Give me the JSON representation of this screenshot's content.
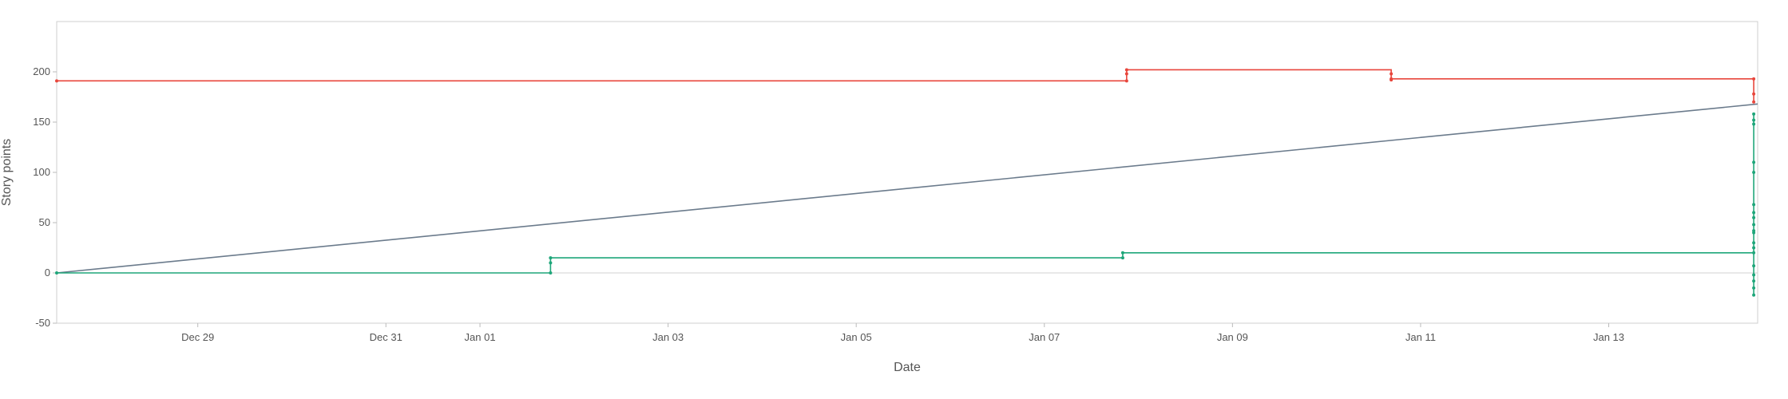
{
  "chart_data": {
    "type": "line",
    "title": "",
    "xlabel": "Date",
    "ylabel": "Story points",
    "x_axis_type": "date",
    "xlim": [
      "2023-12-27T12:00",
      "2024-01-14T14:00"
    ],
    "ylim": [
      -50,
      250
    ],
    "x_ticks": [
      {
        "date": "2023-12-29",
        "label": "Dec 29"
      },
      {
        "date": "2023-12-31",
        "label": "Dec 31"
      },
      {
        "date": "2024-01-01",
        "label": "Jan 01"
      },
      {
        "date": "2024-01-03",
        "label": "Jan 03"
      },
      {
        "date": "2024-01-05",
        "label": "Jan 05"
      },
      {
        "date": "2024-01-07",
        "label": "Jan 07"
      },
      {
        "date": "2024-01-09",
        "label": "Jan 09"
      },
      {
        "date": "2024-01-11",
        "label": "Jan 11"
      },
      {
        "date": "2024-01-13",
        "label": "Jan 13"
      }
    ],
    "y_ticks": [
      -50,
      0,
      50,
      100,
      150,
      200
    ],
    "grid": {
      "horizontal_zero_line": true,
      "other_gridlines": false
    },
    "legend": "none",
    "series": [
      {
        "color": "#e8463c",
        "step": true,
        "markers": true,
        "points": [
          [
            "2023-12-27T12:00",
            191
          ],
          [
            "2024-01-07T21:00",
            191
          ],
          [
            "2024-01-07T21:00",
            198
          ],
          [
            "2024-01-07T21:00",
            202
          ],
          [
            "2024-01-10T16:30",
            198
          ],
          [
            "2024-01-10T16:30",
            192
          ],
          [
            "2024-01-10T16:30",
            193
          ],
          [
            "2024-01-14T13:00",
            193
          ],
          [
            "2024-01-14T13:00",
            178
          ],
          [
            "2024-01-14T13:00",
            170
          ]
        ]
      },
      {
        "color": "#6b7b8c",
        "step": false,
        "markers": false,
        "points": [
          [
            "2023-12-27T12:00",
            0
          ],
          [
            "2024-01-14T14:00",
            168
          ]
        ]
      },
      {
        "color": "#1fa67a",
        "step": true,
        "markers": true,
        "points": [
          [
            "2023-12-27T12:00",
            0
          ],
          [
            "2024-01-01T18:00",
            0
          ],
          [
            "2024-01-01T18:00",
            10
          ],
          [
            "2024-01-01T18:00",
            15
          ],
          [
            "2024-01-07T20:00",
            15
          ],
          [
            "2024-01-07T20:00",
            20
          ],
          [
            "2024-01-14T13:00",
            20
          ],
          [
            "2024-01-14T13:00",
            -22
          ],
          [
            "2024-01-14T13:00",
            -15
          ],
          [
            "2024-01-14T13:00",
            -8
          ],
          [
            "2024-01-14T13:00",
            -2
          ],
          [
            "2024-01-14T13:00",
            7
          ],
          [
            "2024-01-14T13:00",
            25
          ],
          [
            "2024-01-14T13:00",
            30
          ],
          [
            "2024-01-14T13:00",
            40
          ],
          [
            "2024-01-14T13:00",
            42
          ],
          [
            "2024-01-14T13:00",
            48
          ],
          [
            "2024-01-14T13:00",
            55
          ],
          [
            "2024-01-14T13:00",
            60
          ],
          [
            "2024-01-14T13:00",
            68
          ],
          [
            "2024-01-14T13:00",
            100
          ],
          [
            "2024-01-14T13:00",
            110
          ],
          [
            "2024-01-14T13:00",
            148
          ],
          [
            "2024-01-14T13:00",
            152
          ],
          [
            "2024-01-14T13:00",
            158
          ]
        ]
      }
    ]
  }
}
